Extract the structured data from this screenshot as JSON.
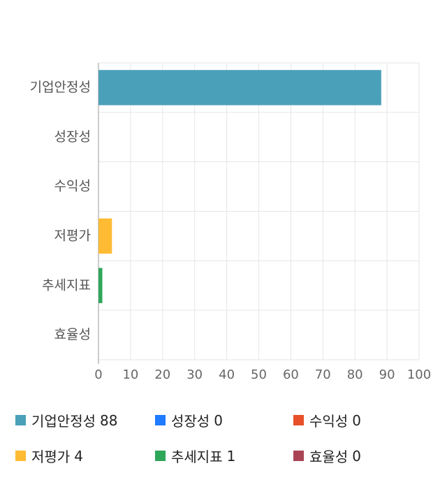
{
  "chart_data": {
    "type": "bar",
    "orientation": "horizontal",
    "categories": [
      "기업안정성",
      "성장성",
      "수익성",
      "저평가",
      "추세지표",
      "효율성"
    ],
    "values": [
      88,
      0,
      0,
      4,
      1,
      0
    ],
    "colors": [
      "#4aa0b8",
      "#1f7bff",
      "#e8502a",
      "#ffbb33",
      "#2ea65a",
      "#aa4455"
    ],
    "xlim": [
      0,
      100
    ],
    "xticks": [
      0,
      10,
      20,
      30,
      40,
      50,
      60,
      70,
      80,
      90,
      100
    ],
    "grid": true,
    "legend_position": "bottom",
    "legend": [
      {
        "label": "기업안정성",
        "value": "88"
      },
      {
        "label": "성장성",
        "value": "0"
      },
      {
        "label": "수익성",
        "value": "0"
      },
      {
        "label": "저평가",
        "value": "4"
      },
      {
        "label": "추세지표",
        "value": "1"
      },
      {
        "label": "효율성",
        "value": "0"
      }
    ]
  }
}
